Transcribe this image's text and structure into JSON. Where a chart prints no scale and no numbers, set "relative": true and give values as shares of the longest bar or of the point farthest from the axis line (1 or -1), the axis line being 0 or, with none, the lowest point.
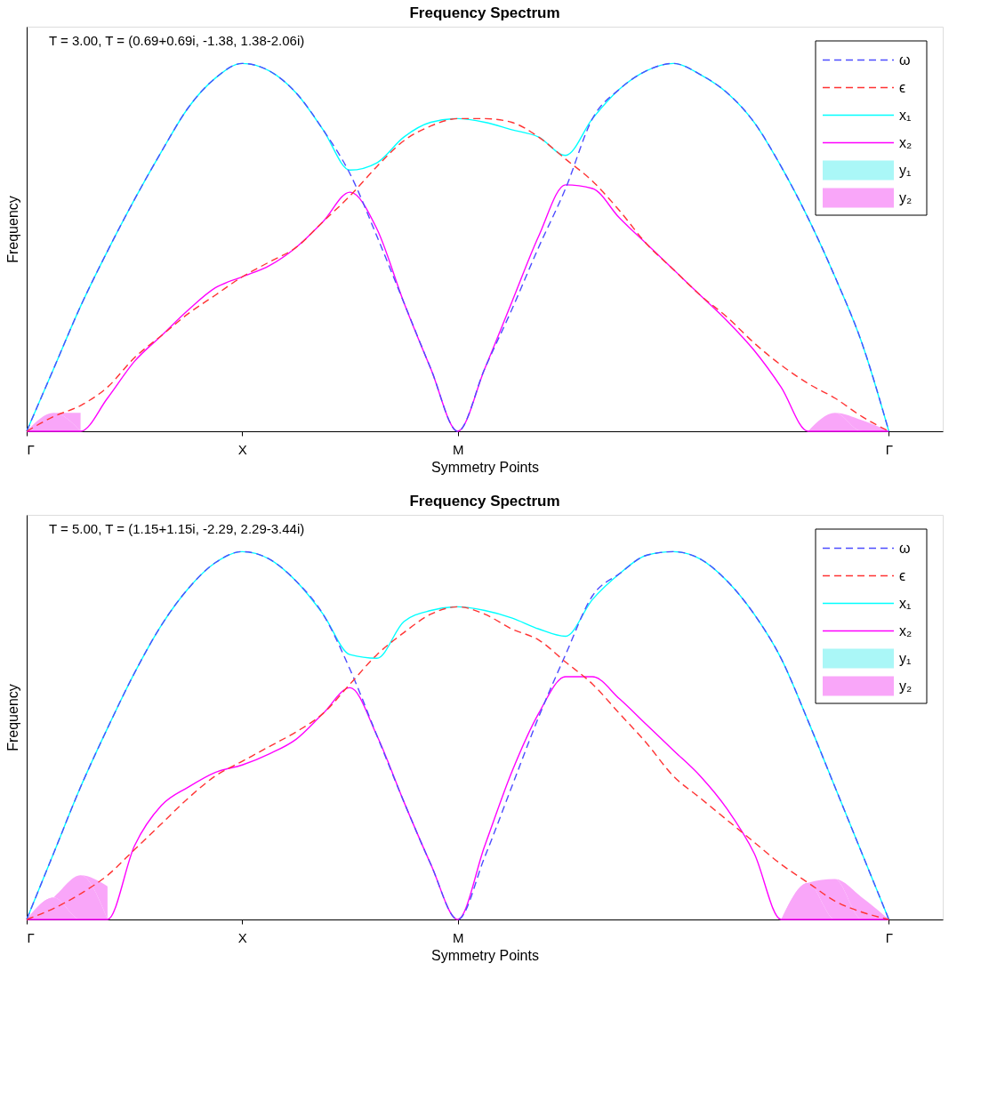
{
  "chart_data": [
    {
      "type": "line",
      "title": "Frequency Spectrum",
      "xlabel": "Symmetry Points",
      "ylabel": "Frequency",
      "annotations": [
        "T = 3.00, T = (0.69+0.69i, -1.38, 1.38-2.06i)"
      ],
      "relative": true,
      "legend": "top right",
      "categories": [
        "Γ",
        null,
        null,
        null,
        null,
        null,
        null,
        null,
        "X",
        null,
        null,
        null,
        null,
        null,
        null,
        null,
        "M",
        null,
        null,
        null,
        null,
        null,
        null,
        null,
        null,
        null,
        null,
        null,
        null,
        null,
        null,
        null,
        "Γ",
        null,
        null
      ],
      "series": [
        {
          "name": "y₁",
          "type": "area",
          "color": "#aaf7f7",
          "values": [
            null,
            null,
            null,
            null,
            null,
            null,
            null,
            null,
            null,
            null,
            null,
            null,
            null,
            null,
            null,
            null,
            null,
            null,
            null,
            null,
            null,
            null,
            null,
            null,
            null,
            null,
            null,
            null,
            null,
            null,
            null,
            null,
            null,
            null,
            null
          ]
        },
        {
          "name": "y₂",
          "type": "area",
          "color": "#f9a6f9",
          "values": [
            0,
            0.05,
            0.05,
            null,
            null,
            null,
            null,
            null,
            null,
            null,
            null,
            null,
            null,
            null,
            null,
            null,
            null,
            null,
            null,
            null,
            null,
            null,
            null,
            null,
            null,
            null,
            null,
            null,
            null,
            0,
            0.05,
            0.03,
            0,
            null,
            null
          ]
        },
        {
          "name": "ω",
          "type": "line",
          "line_style": "dashed",
          "color": "#4d4dff",
          "values": [
            0,
            0.17,
            0.34,
            0.49,
            0.63,
            0.76,
            0.88,
            0.96,
            1,
            0.98,
            0.92,
            0.82,
            0.7,
            0.53,
            0.35,
            0.17,
            0,
            0.17,
            0.33,
            0.5,
            0.66,
            0.85,
            0.93,
            0.98,
            1,
            0.97,
            0.92,
            0.84,
            0.72,
            0.58,
            0.42,
            0.24,
            0,
            null,
            null
          ]
        },
        {
          "name": "ϵ",
          "type": "line",
          "line_style": "dashed",
          "color": "#ff3333",
          "values": [
            0,
            0.04,
            0.07,
            0.12,
            0.2,
            0.26,
            0.32,
            0.37,
            0.42,
            0.46,
            0.5,
            0.57,
            0.64,
            0.72,
            0.79,
            0.83,
            0.85,
            0.85,
            0.84,
            0.8,
            0.74,
            0.68,
            0.6,
            0.51,
            0.44,
            0.37,
            0.31,
            0.24,
            0.18,
            0.13,
            0.09,
            0.04,
            0,
            null,
            null
          ]
        },
        {
          "name": "x₁",
          "type": "line",
          "line_style": "solid",
          "color": "#00ffff",
          "values": [
            0,
            0.17,
            0.34,
            0.49,
            0.63,
            0.76,
            0.88,
            0.96,
            1,
            0.98,
            0.92,
            0.82,
            0.71,
            0.73,
            0.8,
            0.84,
            0.85,
            0.84,
            0.82,
            0.8,
            0.75,
            0.85,
            0.93,
            0.98,
            1,
            0.97,
            0.92,
            0.84,
            0.72,
            0.58,
            0.42,
            0.24,
            0,
            null,
            null
          ]
        },
        {
          "name": "x₂",
          "type": "line",
          "line_style": "solid",
          "color": "#ff00ff",
          "values": [
            0,
            0,
            0,
            0.09,
            0.19,
            0.26,
            0.33,
            0.39,
            0.42,
            0.45,
            0.5,
            0.57,
            0.65,
            0.55,
            0.35,
            0.17,
            0,
            0.17,
            0.35,
            0.53,
            0.67,
            0.66,
            0.58,
            0.51,
            0.44,
            0.37,
            0.3,
            0.22,
            0.12,
            0,
            0,
            0,
            0,
            null,
            null
          ]
        }
      ]
    },
    {
      "type": "line",
      "title": "Frequency Spectrum",
      "xlabel": "Symmetry Points",
      "ylabel": "Frequency",
      "annotations": [
        "T = 5.00, T = (1.15+1.15i, -2.29, 2.29-3.44i)"
      ],
      "relative": true,
      "legend": "top right",
      "categories": [
        "Γ",
        null,
        null,
        null,
        null,
        null,
        null,
        null,
        "X",
        null,
        null,
        null,
        null,
        null,
        null,
        null,
        "M",
        null,
        null,
        null,
        null,
        null,
        null,
        null,
        null,
        null,
        null,
        null,
        null,
        null,
        null,
        null,
        "Γ",
        null,
        null
      ],
      "series": [
        {
          "name": "y₁",
          "type": "area",
          "color": "#aaf7f7",
          "values": [
            null,
            null,
            null,
            null,
            null,
            null,
            null,
            null,
            null,
            null,
            null,
            null,
            null,
            null,
            null,
            null,
            null,
            null,
            null,
            null,
            null,
            null,
            null,
            null,
            null,
            null,
            null,
            null,
            null,
            null,
            null,
            null,
            null,
            null,
            null
          ]
        },
        {
          "name": "y₂",
          "type": "area",
          "color": "#f9a6f9",
          "values": [
            0,
            0.06,
            0.12,
            0.09,
            null,
            null,
            null,
            null,
            null,
            null,
            null,
            null,
            null,
            null,
            null,
            null,
            null,
            null,
            null,
            null,
            null,
            null,
            null,
            null,
            null,
            null,
            null,
            null,
            0,
            0.1,
            0.11,
            0.06,
            0,
            null,
            null
          ]
        },
        {
          "name": "ω",
          "type": "line",
          "line_style": "dashed",
          "color": "#4d4dff",
          "values": [
            0,
            0.18,
            0.36,
            0.52,
            0.67,
            0.8,
            0.9,
            0.97,
            1,
            0.98,
            0.92,
            0.83,
            0.68,
            0.5,
            0.32,
            0.15,
            0,
            0.17,
            0.36,
            0.55,
            0.72,
            0.88,
            0.94,
            0.99,
            1,
            0.98,
            0.92,
            0.83,
            0.71,
            0.54,
            0.36,
            0.18,
            0,
            null,
            null
          ]
        },
        {
          "name": "ϵ",
          "type": "line",
          "line_style": "dashed",
          "color": "#ff3333",
          "values": [
            0,
            0.03,
            0.07,
            0.12,
            0.19,
            0.26,
            0.33,
            0.39,
            0.43,
            0.47,
            0.51,
            0.56,
            0.64,
            0.72,
            0.78,
            0.83,
            0.85,
            0.83,
            0.79,
            0.76,
            0.7,
            0.64,
            0.56,
            0.48,
            0.39,
            0.33,
            0.27,
            0.21,
            0.15,
            0.1,
            0.05,
            0.02,
            0,
            null,
            null
          ]
        },
        {
          "name": "x₁",
          "type": "line",
          "line_style": "solid",
          "color": "#00ffff",
          "values": [
            0,
            0.18,
            0.36,
            0.52,
            0.67,
            0.8,
            0.9,
            0.97,
            1,
            0.98,
            0.92,
            0.83,
            0.72,
            0.71,
            0.81,
            0.84,
            0.85,
            0.84,
            0.82,
            0.79,
            0.77,
            0.87,
            0.94,
            0.99,
            1,
            0.98,
            0.92,
            0.83,
            0.71,
            0.54,
            0.36,
            0.18,
            0,
            null,
            null
          ]
        },
        {
          "name": "x₂",
          "type": "line",
          "line_style": "solid",
          "color": "#ff00ff",
          "values": [
            0,
            0,
            0,
            0,
            0.2,
            0.31,
            0.36,
            0.4,
            0.42,
            0.45,
            0.49,
            0.56,
            0.63,
            0.5,
            0.32,
            0.15,
            0,
            0.2,
            0.4,
            0.56,
            0.66,
            0.66,
            0.6,
            0.53,
            0.46,
            0.39,
            0.3,
            0.18,
            0,
            0,
            0,
            0,
            0,
            null,
            null
          ]
        }
      ]
    }
  ]
}
